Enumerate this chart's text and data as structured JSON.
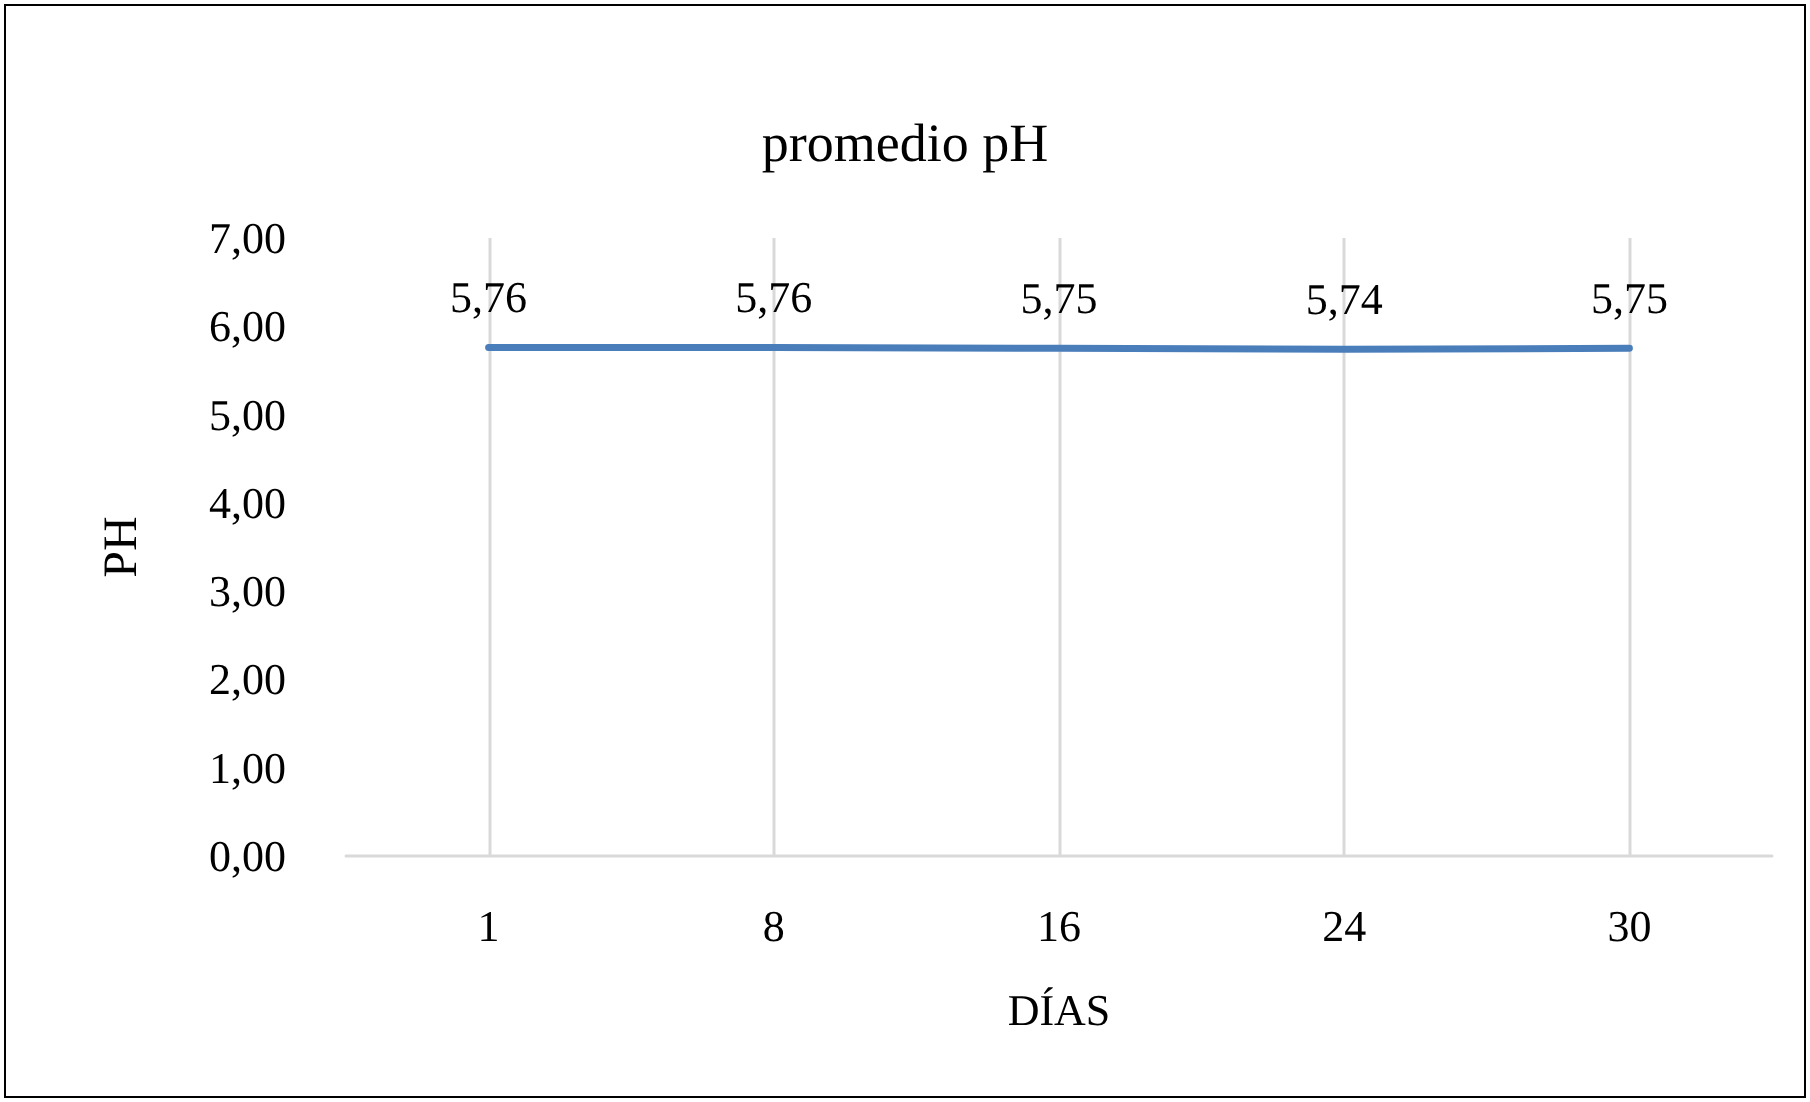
{
  "chart_data": {
    "type": "line",
    "title": "promedio pH",
    "xlabel": "DÍAS",
    "ylabel": "PH",
    "categories": [
      "1",
      "8",
      "16",
      "24",
      "30"
    ],
    "series": [
      {
        "color": "#4a7ebb",
        "values": [
          5.76,
          5.76,
          5.75,
          5.74,
          5.75
        ],
        "value_labels": [
          "5,76",
          "5,76",
          "5,75",
          "5,74",
          "5,75"
        ]
      }
    ],
    "ylim": [
      0,
      7
    ],
    "yticks": [
      {
        "value": 0,
        "label": "0,00"
      },
      {
        "value": 1,
        "label": "1,00"
      },
      {
        "value": 2,
        "label": "2,00"
      },
      {
        "value": 3,
        "label": "3,00"
      },
      {
        "value": 4,
        "label": "4,00"
      },
      {
        "value": 5,
        "label": "5,00"
      },
      {
        "value": 6,
        "label": "6,00"
      },
      {
        "value": 7,
        "label": "7,00"
      }
    ],
    "grid": "x",
    "marker": "none",
    "line_style": "solid"
  }
}
